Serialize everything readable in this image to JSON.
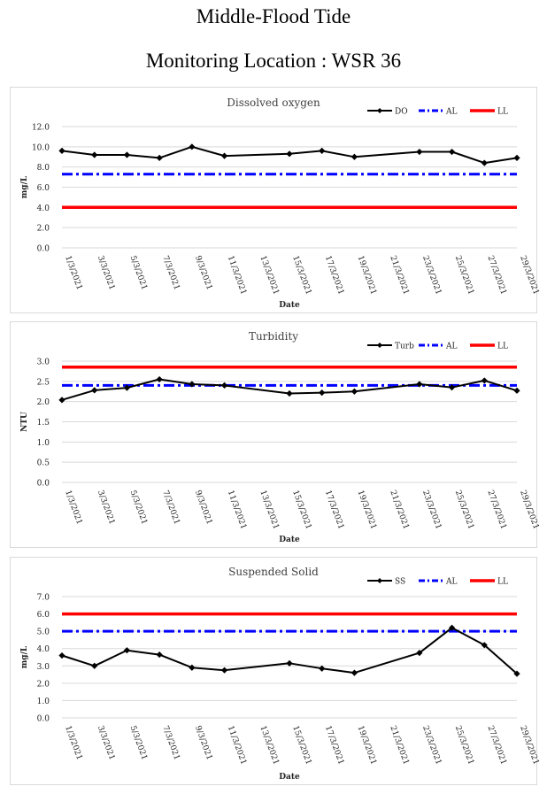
{
  "page": {
    "title_line1": "Middle-Flood Tide",
    "title_line2": "Monitoring Location : WSR 36"
  },
  "chart_data": [
    {
      "type": "line",
      "title": "Dissolved oxygen",
      "xlabel": "Date",
      "ylabel": "mg/L",
      "ylim": [
        0,
        12
      ],
      "yticks": [
        "0.0",
        "2.0",
        "4.0",
        "6.0",
        "8.0",
        "10.0",
        "12.0"
      ],
      "categories": [
        "1/3/2021",
        "3/3/2021",
        "5/3/2021",
        "7/3/2021",
        "9/3/2021",
        "11/3/2021",
        "13/3/2021",
        "15/3/2021",
        "17/3/2021",
        "19/3/2021",
        "21/3/2021",
        "23/3/2021",
        "25/3/2021",
        "27/3/2021",
        "29/3/2021"
      ],
      "legend_position": "top-right",
      "grid": true,
      "series": [
        {
          "name": "DO",
          "style": "solid-diamond",
          "color": "#000000",
          "points": [
            [
              0,
              9.6
            ],
            [
              1,
              9.2
            ],
            [
              2,
              9.2
            ],
            [
              3,
              8.9
            ],
            [
              4,
              10.0
            ],
            [
              5,
              9.1
            ],
            [
              7,
              9.3
            ],
            [
              8,
              9.6
            ],
            [
              9,
              9.0
            ],
            [
              11,
              9.5
            ],
            [
              12,
              9.5
            ],
            [
              13,
              8.4
            ],
            [
              14,
              8.9
            ]
          ]
        },
        {
          "name": "AL",
          "style": "dashdot",
          "color": "#0000ff",
          "points": [
            [
              0,
              7.3
            ],
            [
              14,
              7.3
            ]
          ]
        },
        {
          "name": "LL",
          "style": "solid-thick",
          "color": "#ff0000",
          "points": [
            [
              0,
              4.0
            ],
            [
              14,
              4.0
            ]
          ]
        }
      ]
    },
    {
      "type": "line",
      "title": "Turbidity",
      "xlabel": "Date",
      "ylabel": "NTU",
      "ylim": [
        0,
        3
      ],
      "yticks": [
        "0.0",
        "0.5",
        "1.0",
        "1.5",
        "2.0",
        "2.5",
        "3.0"
      ],
      "categories": [
        "1/3/2021",
        "3/3/2021",
        "5/3/2021",
        "7/3/2021",
        "9/3/2021",
        "11/3/2021",
        "13/3/2021",
        "15/3/2021",
        "17/3/2021",
        "19/3/2021",
        "21/3/2021",
        "23/3/2021",
        "25/3/2021",
        "27/3/2021",
        "29/3/2021"
      ],
      "legend_position": "top-right",
      "grid": true,
      "series": [
        {
          "name": "Turb",
          "style": "solid-diamond",
          "color": "#000000",
          "points": [
            [
              0,
              2.04
            ],
            [
              1,
              2.28
            ],
            [
              2,
              2.34
            ],
            [
              3,
              2.55
            ],
            [
              4,
              2.43
            ],
            [
              5,
              2.4
            ],
            [
              7,
              2.2
            ],
            [
              8,
              2.22
            ],
            [
              9,
              2.25
            ],
            [
              11,
              2.43
            ],
            [
              12,
              2.35
            ],
            [
              13,
              2.52
            ],
            [
              14,
              2.27
            ]
          ]
        },
        {
          "name": "AL",
          "style": "dashdot",
          "color": "#0000ff",
          "points": [
            [
              0,
              2.4
            ],
            [
              14,
              2.4
            ]
          ]
        },
        {
          "name": "LL",
          "style": "solid-thick",
          "color": "#ff0000",
          "points": [
            [
              0,
              2.85
            ],
            [
              14,
              2.85
            ]
          ]
        }
      ]
    },
    {
      "type": "line",
      "title": "Suspended Solid",
      "xlabel": "Date",
      "ylabel": "mg/L",
      "ylim": [
        0,
        7
      ],
      "yticks": [
        "0.0",
        "1.0",
        "2.0",
        "3.0",
        "4.0",
        "5.0",
        "6.0",
        "7.0"
      ],
      "categories": [
        "1/3/2021",
        "3/3/2021",
        "5/3/2021",
        "7/3/2021",
        "9/3/2021",
        "11/3/2021",
        "13/3/2021",
        "15/3/2021",
        "17/3/2021",
        "19/3/2021",
        "21/3/2021",
        "23/3/2021",
        "25/3/2021",
        "27/3/2021",
        "29/3/2021"
      ],
      "legend_position": "top-right",
      "grid": true,
      "series": [
        {
          "name": "SS",
          "style": "solid-diamond",
          "color": "#000000",
          "points": [
            [
              0,
              3.6
            ],
            [
              1,
              3.0
            ],
            [
              2,
              3.9
            ],
            [
              3,
              3.65
            ],
            [
              4,
              2.9
            ],
            [
              5,
              2.75
            ],
            [
              7,
              3.15
            ],
            [
              8,
              2.85
            ],
            [
              9,
              2.6
            ],
            [
              11,
              3.75
            ],
            [
              12,
              5.2
            ],
            [
              13,
              4.2
            ],
            [
              14,
              2.55
            ]
          ]
        },
        {
          "name": "AL",
          "style": "dashdot",
          "color": "#0000ff",
          "points": [
            [
              0,
              5.0
            ],
            [
              14,
              5.0
            ]
          ]
        },
        {
          "name": "LL",
          "style": "solid-thick",
          "color": "#ff0000",
          "points": [
            [
              0,
              6.0
            ],
            [
              14,
              6.0
            ]
          ]
        }
      ]
    }
  ]
}
